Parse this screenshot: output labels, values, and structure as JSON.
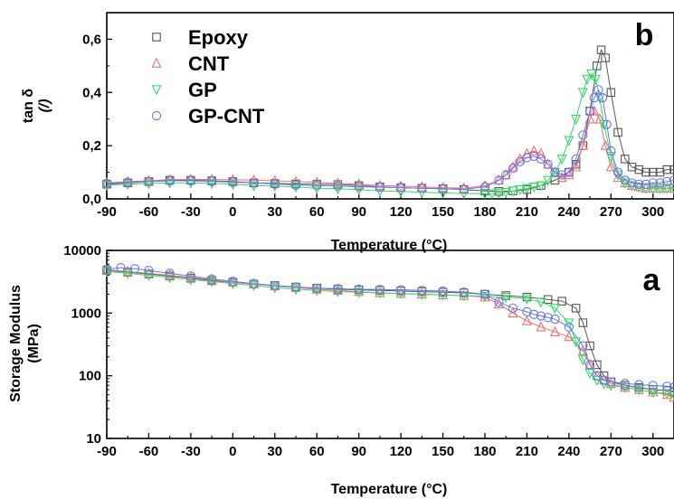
{
  "chart_data": [
    {
      "panel": "b",
      "type": "line",
      "ylabel": "tan δ",
      "ylabel_unit": "(/)",
      "xlabel": "Temperature (°C)",
      "xlim": [
        -90,
        315
      ],
      "ylim": [
        0.0,
        0.7
      ],
      "xticks": [
        "-90",
        "-60",
        "-30",
        "0",
        "30",
        "60",
        "90",
        "120",
        "150",
        "180",
        "210",
        "240",
        "270",
        "300"
      ],
      "yticks": [
        "0,0",
        "0,2",
        "0,4",
        "0,6"
      ],
      "legend_position": "top-left",
      "series": [
        {
          "name": "Epoxy",
          "marker": "square",
          "color": "#555555",
          "x": [
            -90,
            -75,
            -60,
            -45,
            -30,
            -15,
            0,
            15,
            30,
            45,
            60,
            75,
            90,
            105,
            120,
            135,
            150,
            165,
            180,
            190,
            200,
            210,
            220,
            230,
            240,
            245,
            250,
            255,
            260,
            263,
            266,
            270,
            275,
            280,
            285,
            290,
            295,
            300,
            305,
            310,
            315
          ],
          "y": [
            0.055,
            0.06,
            0.065,
            0.07,
            0.07,
            0.068,
            0.065,
            0.06,
            0.058,
            0.056,
            0.055,
            0.054,
            0.05,
            0.045,
            0.042,
            0.04,
            0.038,
            0.035,
            0.03,
            0.028,
            0.03,
            0.035,
            0.05,
            0.07,
            0.1,
            0.13,
            0.2,
            0.33,
            0.5,
            0.56,
            0.53,
            0.4,
            0.25,
            0.15,
            0.12,
            0.11,
            0.1,
            0.1,
            0.1,
            0.11,
            0.11
          ]
        },
        {
          "name": "CNT",
          "marker": "triangle-up",
          "color": "#f07070",
          "x": [
            -90,
            -75,
            -60,
            -45,
            -30,
            -15,
            0,
            15,
            30,
            45,
            60,
            75,
            90,
            105,
            120,
            135,
            150,
            165,
            180,
            190,
            195,
            200,
            205,
            210,
            215,
            220,
            225,
            230,
            235,
            240,
            245,
            250,
            255,
            258,
            262,
            266,
            270,
            275,
            280,
            285,
            290,
            295,
            300,
            305,
            310,
            315
          ],
          "y": [
            0.06,
            0.065,
            0.068,
            0.072,
            0.073,
            0.073,
            0.072,
            0.07,
            0.068,
            0.065,
            0.062,
            0.058,
            0.055,
            0.05,
            0.048,
            0.045,
            0.042,
            0.04,
            0.05,
            0.07,
            0.09,
            0.12,
            0.15,
            0.17,
            0.18,
            0.17,
            0.13,
            0.1,
            0.08,
            0.09,
            0.12,
            0.2,
            0.3,
            0.33,
            0.3,
            0.2,
            0.12,
            0.08,
            0.06,
            0.05,
            0.045,
            0.04,
            0.04,
            0.04,
            0.04,
            0.04
          ]
        },
        {
          "name": "GP",
          "marker": "triangle-down",
          "color": "#33dd66",
          "x": [
            -90,
            -75,
            -60,
            -45,
            -30,
            -15,
            0,
            15,
            30,
            45,
            60,
            75,
            90,
            105,
            120,
            135,
            150,
            165,
            180,
            185,
            190,
            195,
            200,
            205,
            210,
            215,
            220,
            225,
            230,
            235,
            240,
            245,
            250,
            253,
            256,
            259,
            262,
            265,
            270,
            275,
            280,
            285,
            290,
            295,
            300,
            305,
            310,
            315
          ],
          "y": [
            0.052,
            0.055,
            0.058,
            0.06,
            0.06,
            0.058,
            0.055,
            0.05,
            0.048,
            0.045,
            0.04,
            0.038,
            0.035,
            0.03,
            0.028,
            0.025,
            0.022,
            0.02,
            0.02,
            0.02,
            0.022,
            0.025,
            0.03,
            0.035,
            0.04,
            0.045,
            0.05,
            0.07,
            0.1,
            0.15,
            0.22,
            0.3,
            0.4,
            0.45,
            0.47,
            0.45,
            0.38,
            0.28,
            0.16,
            0.09,
            0.06,
            0.05,
            0.045,
            0.04,
            0.04,
            0.04,
            0.04,
            0.04
          ]
        },
        {
          "name": "GP-CNT",
          "marker": "circle",
          "color": "#6677ee",
          "x": [
            -90,
            -75,
            -60,
            -45,
            -30,
            -15,
            0,
            15,
            30,
            45,
            60,
            75,
            90,
            105,
            120,
            135,
            150,
            165,
            180,
            190,
            195,
            200,
            205,
            210,
            215,
            220,
            225,
            230,
            235,
            240,
            245,
            250,
            255,
            258,
            261,
            264,
            267,
            270,
            275,
            280,
            285,
            290,
            295,
            300,
            305,
            310,
            315
          ],
          "y": [
            0.058,
            0.062,
            0.065,
            0.068,
            0.068,
            0.066,
            0.063,
            0.06,
            0.056,
            0.052,
            0.05,
            0.048,
            0.046,
            0.044,
            0.042,
            0.04,
            0.038,
            0.036,
            0.045,
            0.07,
            0.09,
            0.115,
            0.14,
            0.155,
            0.16,
            0.15,
            0.13,
            0.1,
            0.09,
            0.1,
            0.15,
            0.24,
            0.33,
            0.38,
            0.41,
            0.38,
            0.28,
            0.18,
            0.1,
            0.07,
            0.06,
            0.055,
            0.055,
            0.06,
            0.06,
            0.065,
            0.07
          ]
        }
      ],
      "panel_label": "b",
      "grid": false
    },
    {
      "panel": "a",
      "type": "line",
      "ylabel": "Storage Modulus",
      "ylabel_unit": "(MPa)",
      "xlabel": "Temperature (°C)",
      "xlim": [
        -90,
        315
      ],
      "ylim": [
        10,
        10000
      ],
      "yscale": "log",
      "xticks": [
        "-90",
        "-60",
        "-30",
        "0",
        "30",
        "60",
        "90",
        "120",
        "150",
        "180",
        "210",
        "240",
        "270",
        "300"
      ],
      "yticks": [
        "10",
        "100",
        "1000",
        "10000"
      ],
      "series": [
        {
          "name": "Epoxy",
          "marker": "square",
          "color": "#555555",
          "x": [
            -90,
            -75,
            -60,
            -45,
            -30,
            -15,
            0,
            15,
            30,
            45,
            60,
            75,
            90,
            105,
            120,
            135,
            150,
            165,
            180,
            195,
            210,
            225,
            235,
            245,
            250,
            255,
            260,
            265,
            270,
            280,
            290,
            300,
            310,
            315
          ],
          "y": [
            4800,
            4500,
            4200,
            3900,
            3600,
            3300,
            3100,
            2900,
            2750,
            2600,
            2500,
            2400,
            2350,
            2300,
            2250,
            2200,
            2150,
            2100,
            2000,
            1900,
            1800,
            1650,
            1550,
            1200,
            700,
            300,
            150,
            100,
            80,
            70,
            65,
            60,
            58,
            55
          ]
        },
        {
          "name": "CNT",
          "marker": "triangle-up",
          "color": "#f07070",
          "x": [
            -90,
            -75,
            -60,
            -45,
            -30,
            -15,
            0,
            15,
            30,
            45,
            60,
            75,
            90,
            105,
            120,
            135,
            150,
            165,
            180,
            190,
            200,
            210,
            220,
            230,
            240,
            250,
            255,
            260,
            265,
            270,
            280,
            290,
            300,
            310,
            315
          ],
          "y": [
            4900,
            4600,
            4300,
            4000,
            3700,
            3400,
            3100,
            2900,
            2700,
            2550,
            2400,
            2300,
            2200,
            2100,
            2050,
            2000,
            1950,
            1900,
            1800,
            1400,
            1000,
            750,
            600,
            500,
            420,
            250,
            150,
            100,
            85,
            75,
            65,
            60,
            55,
            50,
            45
          ]
        },
        {
          "name": "GP",
          "marker": "triangle-down",
          "color": "#33dd66",
          "x": [
            -90,
            -75,
            -60,
            -45,
            -30,
            -15,
            0,
            15,
            30,
            45,
            60,
            75,
            90,
            105,
            120,
            135,
            150,
            165,
            180,
            195,
            210,
            220,
            230,
            240,
            245,
            250,
            255,
            260,
            265,
            270,
            280,
            290,
            300,
            310,
            315
          ],
          "y": [
            4600,
            4300,
            4000,
            3700,
            3400,
            3200,
            2950,
            2750,
            2550,
            2400,
            2300,
            2200,
            2150,
            2100,
            2050,
            2000,
            1950,
            1900,
            1850,
            1800,
            1700,
            1500,
            1200,
            700,
            350,
            180,
            110,
            85,
            75,
            70,
            65,
            60,
            55,
            52,
            50
          ]
        },
        {
          "name": "GP-CNT",
          "marker": "circle",
          "color": "#6677ee",
          "x": [
            -90,
            -80,
            -70,
            -60,
            -45,
            -30,
            -15,
            0,
            15,
            30,
            45,
            60,
            75,
            90,
            105,
            120,
            135,
            150,
            165,
            180,
            190,
            200,
            210,
            215,
            220,
            225,
            230,
            240,
            250,
            255,
            260,
            265,
            270,
            280,
            290,
            300,
            310,
            315
          ],
          "y": [
            5000,
            5300,
            5100,
            4800,
            4300,
            3900,
            3500,
            3200,
            2950,
            2750,
            2600,
            2500,
            2450,
            2400,
            2380,
            2350,
            2300,
            2250,
            2150,
            2000,
            1500,
            1200,
            1050,
            950,
            900,
            850,
            800,
            600,
            300,
            150,
            100,
            85,
            80,
            75,
            72,
            70,
            68,
            66
          ]
        }
      ],
      "panel_label": "a",
      "grid": false
    }
  ]
}
